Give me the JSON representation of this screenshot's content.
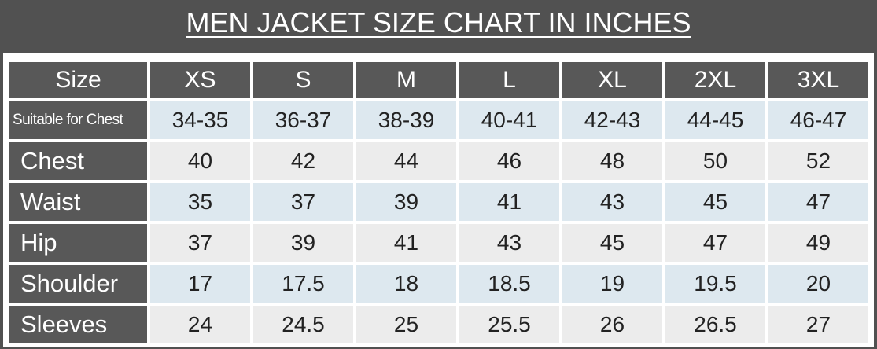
{
  "title": "MEN JACKET SIZE CHART IN INCHES",
  "table": {
    "header": [
      "Size",
      "XS",
      "S",
      "M",
      "L",
      "XL",
      "2XL",
      "3XL"
    ],
    "rows": [
      [
        "Suitable for Chest",
        "34-35",
        "36-37",
        "38-39",
        "40-41",
        "42-43",
        "44-45",
        "46-47"
      ],
      [
        "Chest",
        "40",
        "42",
        "44",
        "46",
        "48",
        "50",
        "52"
      ],
      [
        "Waist",
        "35",
        "37",
        "39",
        "41",
        "43",
        "45",
        "47"
      ],
      [
        "Hip",
        "37",
        "39",
        "41",
        "43",
        "45",
        "47",
        "49"
      ],
      [
        "Shoulder",
        "17",
        "17.5",
        "18",
        "18.5",
        "19",
        "19.5",
        "20"
      ],
      [
        "Sleeves",
        "24",
        "24.5",
        "25",
        "25.5",
        "26",
        "26.5",
        "27"
      ]
    ]
  }
}
